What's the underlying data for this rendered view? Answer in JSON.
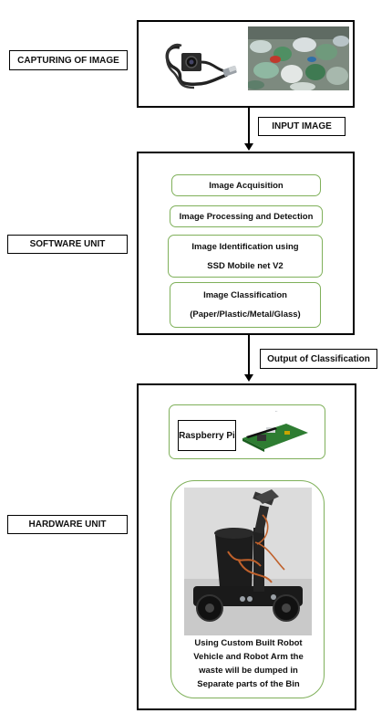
{
  "labels": {
    "capturing": "CAPTURING OF IMAGE",
    "software": "SOFTWARE UNIT",
    "hardware": "HARDWARE UNIT"
  },
  "arrows": {
    "input_image": "INPUT IMAGE",
    "output_classification": "Output of Classification"
  },
  "software_steps": [
    {
      "line1": "Image Acquisition"
    },
    {
      "line1": "Image Processing and Detection"
    },
    {
      "line1": "Image Identification using",
      "line2": "SSD Mobile net V2"
    },
    {
      "line1": "Image Classification",
      "line2": "(Paper/Plastic/Metal/Glass)"
    }
  ],
  "hardware": {
    "raspberry": "Raspberry Pi",
    "robot_caption": [
      "Using Custom Built Robot",
      "Vehicle and Robot Arm the",
      "waste will be dumped in",
      "Separate parts of the Bin"
    ]
  },
  "colors": {
    "box_border": "#000000",
    "step_border": "#7fb05a"
  }
}
